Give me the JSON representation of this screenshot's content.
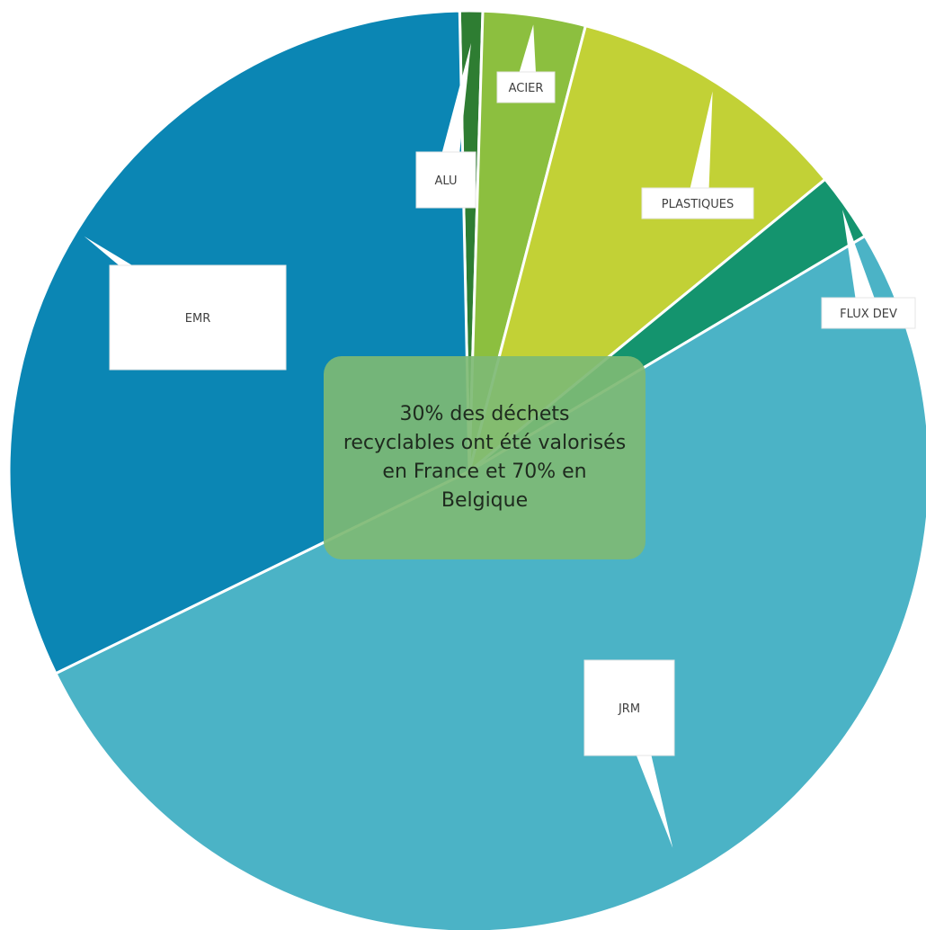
{
  "chart_data": {
    "type": "pie",
    "slices": [
      {
        "label": "ALU",
        "value": 0.8,
        "color": "#2e7d32"
      },
      {
        "label": "ACIER",
        "value": 3.6,
        "color": "#8cbf3f"
      },
      {
        "label": "PLASTIQUES",
        "value": 10.0,
        "color": "#c2d136"
      },
      {
        "label": "FLUX DEV",
        "value": 2.4,
        "color": "#14946e"
      },
      {
        "label": "JRM",
        "value": 51.3,
        "color": "#4bb3c6"
      },
      {
        "label": "EMR",
        "value": 31.9,
        "color": "#0b86b4"
      }
    ],
    "annotation": "30% des déchets recyclables ont été valorisés en France et 70% en Belgique"
  }
}
